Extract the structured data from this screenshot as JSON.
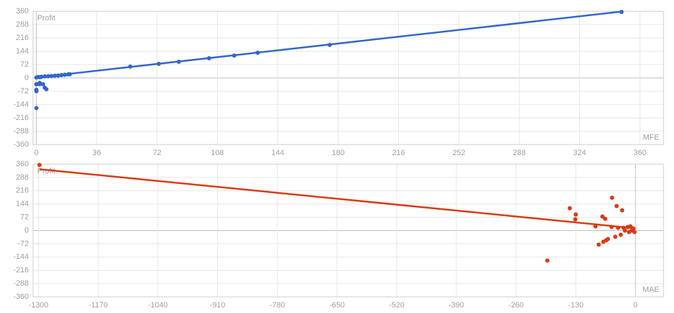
{
  "chart_data": [
    {
      "type": "scatter",
      "y_label": "Profit",
      "x_label": "MFE",
      "xlim": [
        -2,
        374
      ],
      "ylim": [
        -360,
        360
      ],
      "xticks": [
        0,
        36,
        72,
        108,
        144,
        180,
        216,
        252,
        288,
        324,
        360
      ],
      "yticks": [
        -360,
        -288,
        -216,
        -144,
        -72,
        0,
        72,
        144,
        216,
        288,
        360
      ],
      "color": "#3366cc",
      "grid": true,
      "x": [
        0,
        1,
        2,
        3,
        5,
        7,
        9,
        11,
        13,
        15,
        17,
        19,
        20,
        0,
        0,
        0,
        0,
        2,
        2,
        4,
        5,
        6,
        56,
        73,
        85,
        103,
        118,
        132,
        175,
        349
      ],
      "y": [
        2,
        5,
        4,
        6,
        8,
        9,
        10,
        12,
        13,
        15,
        17,
        19,
        20,
        -34,
        -64,
        -72,
        -163,
        -27,
        -34,
        -34,
        -53,
        -61,
        61,
        76,
        87,
        106,
        121,
        136,
        178,
        356
      ],
      "trendline": {
        "x": [
          0,
          349
        ],
        "y": [
          2,
          358
        ]
      }
    },
    {
      "type": "scatter",
      "y_label": "Profit",
      "x_label": "MAE",
      "xlim": [
        -1312,
        61
      ],
      "ylim": [
        -360,
        360
      ],
      "xticks": [
        -1300,
        -1170,
        -1040,
        -910,
        -780,
        -650,
        -520,
        -390,
        -260,
        -130,
        0
      ],
      "yticks": [
        -360,
        -288,
        -216,
        -144,
        -72,
        0,
        72,
        144,
        216,
        288,
        360
      ],
      "color": "#dc3912",
      "grid": true,
      "x": [
        -1298,
        -143,
        -130,
        -131,
        -51,
        -41,
        -29,
        -72,
        -66,
        -192,
        -80,
        -70,
        -64,
        -60,
        -44,
        -32,
        -87,
        -52,
        -38,
        -26,
        -17,
        -11,
        -8,
        -5,
        -2,
        -14,
        -23
      ],
      "y": [
        356,
        121,
        87,
        61,
        178,
        133,
        110,
        76,
        64,
        -163,
        -76,
        -61,
        -53,
        -46,
        -34,
        -23,
        23,
        19,
        15,
        15,
        19,
        23,
        0,
        11,
        -8,
        -8,
        0
      ],
      "trendline": {
        "x": [
          -1298,
          0
        ],
        "y": [
          333,
          12
        ]
      }
    }
  ]
}
